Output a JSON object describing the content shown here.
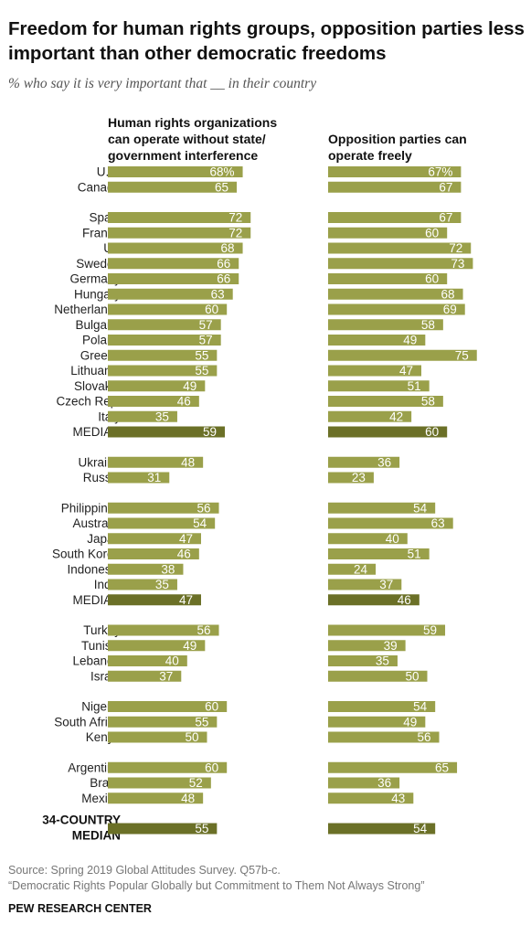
{
  "title": "Freedom for human rights groups, opposition parties less important than other democratic freedoms",
  "subtitle": "% who say it is very important that __ in their country",
  "source": "Source: Spring 2019 Global Attitudes Survey. Q57b-c.",
  "report": "“Democratic Rights Popular Globally but Commitment to Them Not Always Strong”",
  "footer": "PEW RESEARCH CENTER",
  "colors": {
    "bar": "#9aa04a",
    "median_bar": "#6b7027",
    "bar_text": "#ffffff"
  },
  "chart_data": {
    "type": "bar",
    "orientation": "horizontal",
    "series": [
      {
        "name": "Human rights organizations can operate without state/ government interference"
      },
      {
        "name": "Opposition parties can operate freely"
      }
    ],
    "groups": [
      {
        "rows": [
          {
            "label": "U.S.",
            "values": [
              68,
              67
            ],
            "display": [
              "68%",
              "67%"
            ]
          },
          {
            "label": "Canada",
            "values": [
              65,
              67
            ],
            "display": [
              "65",
              "67"
            ]
          }
        ]
      },
      {
        "rows": [
          {
            "label": "Spain",
            "values": [
              72,
              67
            ],
            "display": [
              "72",
              "67"
            ]
          },
          {
            "label": "France",
            "values": [
              72,
              60
            ],
            "display": [
              "72",
              "60"
            ]
          },
          {
            "label": "UK",
            "values": [
              68,
              72
            ],
            "display": [
              "68",
              "72"
            ]
          },
          {
            "label": "Sweden",
            "values": [
              66,
              73
            ],
            "display": [
              "66",
              "73"
            ]
          },
          {
            "label": "Germany",
            "values": [
              66,
              60
            ],
            "display": [
              "66",
              "60"
            ]
          },
          {
            "label": "Hungary",
            "values": [
              63,
              68
            ],
            "display": [
              "63",
              "68"
            ]
          },
          {
            "label": "Netherlands",
            "values": [
              60,
              69
            ],
            "display": [
              "60",
              "69"
            ]
          },
          {
            "label": "Bulgaria",
            "values": [
              57,
              58
            ],
            "display": [
              "57",
              "58"
            ]
          },
          {
            "label": "Poland",
            "values": [
              57,
              49
            ],
            "display": [
              "57",
              "49"
            ]
          },
          {
            "label": "Greece",
            "values": [
              55,
              75
            ],
            "display": [
              "55",
              "75"
            ]
          },
          {
            "label": "Lithuania",
            "values": [
              55,
              47
            ],
            "display": [
              "55",
              "47"
            ]
          },
          {
            "label": "Slovakia",
            "values": [
              49,
              51
            ],
            "display": [
              "49",
              "51"
            ]
          },
          {
            "label": "Czech Rep.",
            "values": [
              46,
              58
            ],
            "display": [
              "46",
              "58"
            ]
          },
          {
            "label": "Italy",
            "values": [
              35,
              42
            ],
            "display": [
              "35",
              "42"
            ]
          },
          {
            "label": "MEDIAN",
            "values": [
              59,
              60
            ],
            "display": [
              "59",
              "60"
            ],
            "median": true
          }
        ]
      },
      {
        "rows": [
          {
            "label": "Ukraine",
            "values": [
              48,
              36
            ],
            "display": [
              "48",
              "36"
            ]
          },
          {
            "label": "Russia",
            "values": [
              31,
              23
            ],
            "display": [
              "31",
              "23"
            ]
          }
        ]
      },
      {
        "rows": [
          {
            "label": "Philippines",
            "values": [
              56,
              54
            ],
            "display": [
              "56",
              "54"
            ]
          },
          {
            "label": "Australia",
            "values": [
              54,
              63
            ],
            "display": [
              "54",
              "63"
            ]
          },
          {
            "label": "Japan",
            "values": [
              47,
              40
            ],
            "display": [
              "47",
              "40"
            ]
          },
          {
            "label": "South Korea",
            "values": [
              46,
              51
            ],
            "display": [
              "46",
              "51"
            ]
          },
          {
            "label": "Indonesia",
            "values": [
              38,
              24
            ],
            "display": [
              "38",
              "24"
            ]
          },
          {
            "label": "India",
            "values": [
              35,
              37
            ],
            "display": [
              "35",
              "37"
            ]
          },
          {
            "label": "MEDIAN",
            "values": [
              47,
              46
            ],
            "display": [
              "47",
              "46"
            ],
            "median": true
          }
        ]
      },
      {
        "rows": [
          {
            "label": "Turkey",
            "values": [
              56,
              59
            ],
            "display": [
              "56",
              "59"
            ]
          },
          {
            "label": "Tunisia",
            "values": [
              49,
              39
            ],
            "display": [
              "49",
              "39"
            ]
          },
          {
            "label": "Lebanon",
            "values": [
              40,
              35
            ],
            "display": [
              "40",
              "35"
            ]
          },
          {
            "label": "Israel",
            "values": [
              37,
              50
            ],
            "display": [
              "37",
              "50"
            ]
          }
        ]
      },
      {
        "rows": [
          {
            "label": "Nigeria",
            "values": [
              60,
              54
            ],
            "display": [
              "60",
              "54"
            ]
          },
          {
            "label": "South Africa",
            "values": [
              55,
              49
            ],
            "display": [
              "55",
              "49"
            ]
          },
          {
            "label": "Kenya",
            "values": [
              50,
              56
            ],
            "display": [
              "50",
              "56"
            ]
          }
        ]
      },
      {
        "rows": [
          {
            "label": "Argentina",
            "values": [
              60,
              65
            ],
            "display": [
              "60",
              "65"
            ]
          },
          {
            "label": "Brazil",
            "values": [
              52,
              36
            ],
            "display": [
              "52",
              "36"
            ]
          },
          {
            "label": "Mexico",
            "values": [
              48,
              43
            ],
            "display": [
              "48",
              "43"
            ]
          }
        ]
      },
      {
        "rows": [
          {
            "label": "34-COUNTRY MEDIAN",
            "label_lines": [
              "34-COUNTRY",
              "MEDIAN"
            ],
            "values": [
              55,
              54
            ],
            "display": [
              "55",
              "54"
            ],
            "median": true,
            "bold": true
          }
        ]
      }
    ]
  }
}
